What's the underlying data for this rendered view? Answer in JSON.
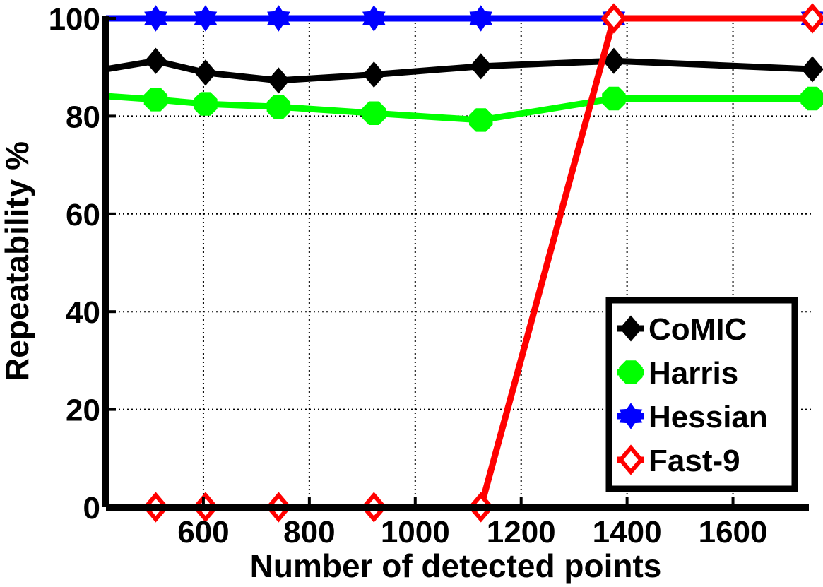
{
  "chart_data": {
    "type": "line",
    "title": "",
    "xlabel": "Number of detected points",
    "ylabel": "Repeatability %",
    "xlim": [
      416,
      1750
    ],
    "ylim": [
      0,
      100
    ],
    "xticks": [
      "600",
      "800",
      "1000",
      "1200",
      "1400",
      "1600"
    ],
    "yticks": [
      "0",
      "20",
      "40",
      "60",
      "80",
      "100"
    ],
    "grid": true,
    "legend_position": "bottom-right",
    "series": [
      {
        "name": "CoMIC",
        "color": "#000000",
        "marker": "diamond",
        "x": [
          416,
          510,
          604,
          742,
          922,
          1124,
          1375,
          1750
        ],
        "y": [
          89.6,
          91.3,
          88.9,
          87.3,
          88.5,
          90.2,
          91.3,
          89.6
        ]
      },
      {
        "name": "Harris",
        "color": "#00ff00",
        "marker": "octagon",
        "x": [
          416,
          510,
          604,
          742,
          922,
          1124,
          1375,
          1750
        ],
        "y": [
          84.1,
          83.4,
          82.5,
          81.9,
          80.6,
          79.2,
          83.6,
          83.6
        ]
      },
      {
        "name": "Hessian",
        "color": "#0000ff",
        "marker": "hexagram",
        "x": [
          416,
          510,
          604,
          742,
          922,
          1124,
          1375,
          1750
        ],
        "y": [
          100,
          100,
          100,
          100,
          100,
          100,
          100,
          100
        ]
      },
      {
        "name": "Fast-9",
        "color": "#ff0000",
        "marker": "diamond-open",
        "x": [
          416,
          510,
          604,
          742,
          922,
          1124,
          1375,
          1750
        ],
        "y": [
          0,
          0,
          0,
          0,
          0,
          0,
          100,
          100
        ]
      }
    ]
  }
}
